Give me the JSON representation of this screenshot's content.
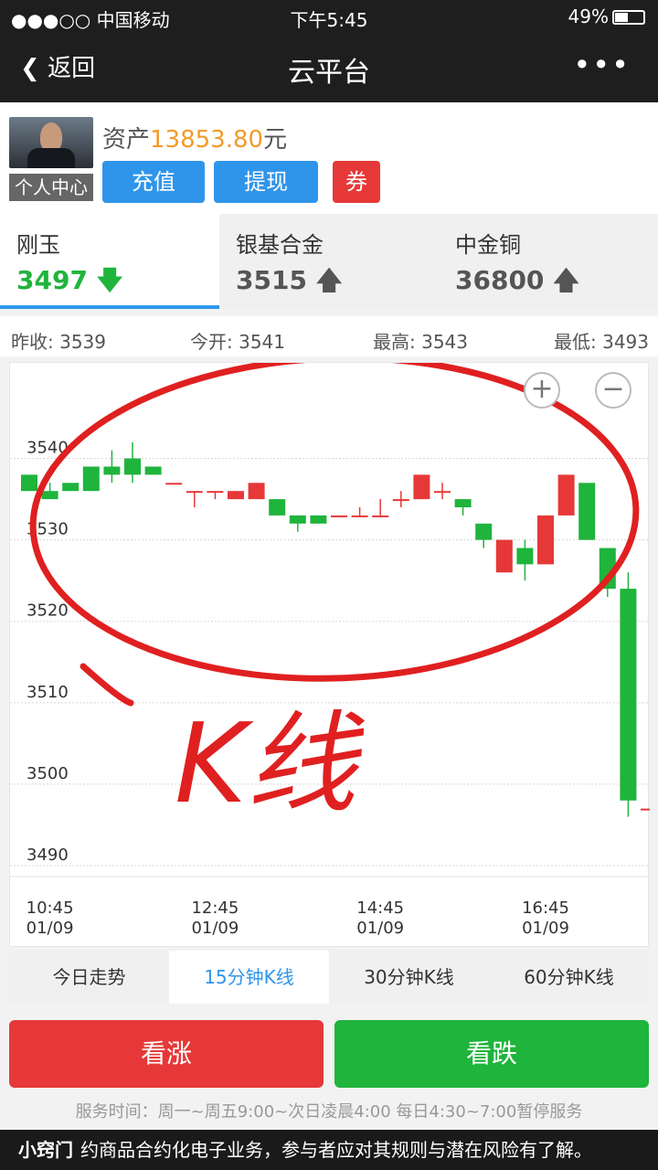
{
  "status": {
    "carrier": "●●●○○ 中国移动",
    "time": "下午5:45",
    "battery": "49%"
  },
  "nav": {
    "back": "返回",
    "title": "云平台",
    "more": "•••"
  },
  "account": {
    "personal_center": "个人中心",
    "asset_label": "资产",
    "asset_value": "13853.80",
    "asset_unit": "元",
    "recharge": "充值",
    "withdraw": "提现",
    "coupon": "券"
  },
  "products": [
    {
      "name": "刚玉",
      "price": "3497",
      "arrow": "🡇"
    },
    {
      "name": "银基合金",
      "price": "3515",
      "arrow": "🡅"
    },
    {
      "name": "中金铜",
      "price": "36800",
      "arrow": "🡅"
    }
  ],
  "quote": {
    "prev_close": "昨收: 3539",
    "open": "今开: 3541",
    "high": "最高: 3543",
    "low": "最低: 3493"
  },
  "chart_zoom": {
    "plus": "+",
    "minus": "−"
  },
  "chart_data": {
    "type": "candlestick",
    "ylim": [
      3490,
      3545
    ],
    "y_ticks": [
      3540,
      3530,
      3520,
      3510,
      3500,
      3490
    ],
    "x_ticks": [
      {
        "time": "10:45",
        "date": "01/09",
        "index": 1
      },
      {
        "time": "12:45",
        "date": "01/09",
        "index": 9
      },
      {
        "time": "14:45",
        "date": "01/09",
        "index": 17
      },
      {
        "time": "16:45",
        "date": "01/09",
        "index": 25
      }
    ],
    "candles": [
      {
        "o": 3538,
        "c": 3536,
        "h": 3538,
        "l": 3536
      },
      {
        "o": 3536,
        "c": 3535,
        "h": 3537,
        "l": 3535
      },
      {
        "o": 3537,
        "c": 3536,
        "h": 3537,
        "l": 3536
      },
      {
        "o": 3539,
        "c": 3536,
        "h": 3539,
        "l": 3536
      },
      {
        "o": 3539,
        "c": 3538,
        "h": 3541,
        "l": 3537
      },
      {
        "o": 3540,
        "c": 3538,
        "h": 3542,
        "l": 3537
      },
      {
        "o": 3539,
        "c": 3538,
        "h": 3539,
        "l": 3538
      },
      {
        "o": 3537,
        "c": 3537,
        "h": 3537,
        "l": 3537
      },
      {
        "o": 3536,
        "c": 3536,
        "h": 3536,
        "l": 3534
      },
      {
        "o": 3536,
        "c": 3536,
        "h": 3536,
        "l": 3535
      },
      {
        "o": 3535,
        "c": 3536,
        "h": 3536,
        "l": 3535
      },
      {
        "o": 3535,
        "c": 3537,
        "h": 3537,
        "l": 3535
      },
      {
        "o": 3535,
        "c": 3533,
        "h": 3535,
        "l": 3533
      },
      {
        "o": 3533,
        "c": 3532,
        "h": 3533,
        "l": 3531
      },
      {
        "o": 3533,
        "c": 3532,
        "h": 3533,
        "l": 3532
      },
      {
        "o": 3533,
        "c": 3533,
        "h": 3533,
        "l": 3533
      },
      {
        "o": 3533,
        "c": 3533,
        "h": 3534,
        "l": 3533
      },
      {
        "o": 3533,
        "c": 3533,
        "h": 3535,
        "l": 3533
      },
      {
        "o": 3535,
        "c": 3535,
        "h": 3536,
        "l": 3534
      },
      {
        "o": 3535,
        "c": 3538,
        "h": 3538,
        "l": 3535
      },
      {
        "o": 3536,
        "c": 3536,
        "h": 3537,
        "l": 3535
      },
      {
        "o": 3535,
        "c": 3534,
        "h": 3535,
        "l": 3533
      },
      {
        "o": 3532,
        "c": 3530,
        "h": 3532,
        "l": 3529
      },
      {
        "o": 3526,
        "c": 3530,
        "h": 3530,
        "l": 3526
      },
      {
        "o": 3529,
        "c": 3527,
        "h": 3530,
        "l": 3525
      },
      {
        "o": 3527,
        "c": 3533,
        "h": 3533,
        "l": 3527
      },
      {
        "o": 3533,
        "c": 3538,
        "h": 3538,
        "l": 3533
      },
      {
        "o": 3537,
        "c": 3530,
        "h": 3537,
        "l": 3530
      },
      {
        "o": 3529,
        "c": 3524,
        "h": 3529,
        "l": 3523
      },
      {
        "o": 3524,
        "c": 3498,
        "h": 3526,
        "l": 3496
      },
      {
        "o": 3497,
        "c": 3497,
        "h": 3497,
        "l": 3497
      }
    ],
    "colors": {
      "up": "#e63838",
      "down": "#1fb43c"
    }
  },
  "periods": [
    "今日走势",
    "15分钟K线",
    "30分钟K线",
    "60分钟K线"
  ],
  "actions": {
    "rise": "看涨",
    "fall": "看跌"
  },
  "service_time": "服务时间：周一~周五9:00~次日凌晨4:00 每日4:30~7:00暂停服务",
  "footer": {
    "logo": "小窍门",
    "text": "约商品合约化电子业务，参与者应对其规则与潜在风险有了解。"
  },
  "annotation": "K线"
}
